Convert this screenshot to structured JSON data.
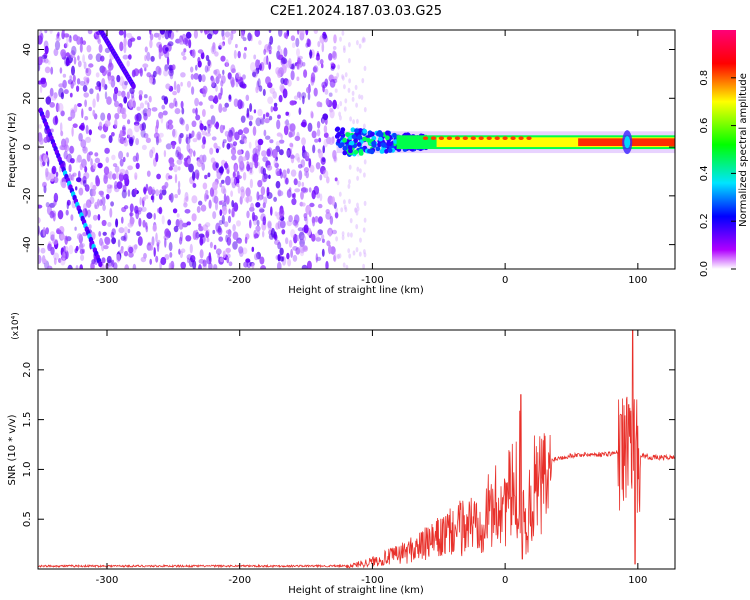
{
  "page_title": "C2E1.2024.187.03.03.G25",
  "chart_data": [
    {
      "type": "heatmap",
      "xlabel": "Height of straight line (km)",
      "ylabel": "Frequency (Hz)",
      "xlim": [
        -352,
        128
      ],
      "ylim": [
        -50,
        48
      ],
      "x_ticks": [
        -300,
        -200,
        -100,
        0,
        100
      ],
      "y_ticks": [
        -40,
        -20,
        0,
        20,
        40
      ],
      "colorbar": {
        "label": "Normalized spectral amplitude",
        "range": [
          0,
          1
        ],
        "ticks": [
          "0.0",
          "0.2",
          "0.4",
          "0.6",
          "0.8"
        ],
        "colors": [
          "#ffffff",
          "#9b00ff",
          "#0000ff",
          "#00e5ff",
          "#00ff00",
          "#ffff00",
          "#ff0000",
          "#ff0077"
        ]
      },
      "features": {
        "noise_region_x": [
          -352,
          -127
        ],
        "carrier_band_freq_hz": [
          0,
          4
        ],
        "carrier_x": [
          -127,
          128
        ],
        "diagonal_streaks": [
          {
            "x": [
              -350,
              -305
            ],
            "freq": [
              15,
              -48
            ]
          },
          {
            "x": [
              -305,
              -280
            ],
            "freq": [
              48,
              25
            ]
          }
        ]
      },
      "grid": false
    },
    {
      "type": "line",
      "xlabel": "Height of straight line (km)",
      "ylabel": "SNR (10 * v/v)",
      "y_multiplier": "(x10⁴)",
      "xlim": [
        -352,
        128
      ],
      "ylim": [
        0,
        2.4
      ],
      "x_ticks": [
        -300,
        -200,
        -100,
        0,
        100
      ],
      "y_ticks": [
        "0.5",
        "1.0",
        "1.5",
        "2.0"
      ],
      "series_color": "#e8302a",
      "profile": {
        "x": [
          -352,
          -120,
          -110,
          -100,
          -80,
          -60,
          -40,
          -20,
          -5,
          10,
          12,
          15,
          20,
          35,
          50,
          60,
          70,
          80,
          85,
          92,
          97,
          100,
          110,
          128
        ],
        "y": [
          0.03,
          0.03,
          0.06,
          0.09,
          0.18,
          0.3,
          0.45,
          0.6,
          0.78,
          0.95,
          1.55,
          0.4,
          0.95,
          1.1,
          1.14,
          1.15,
          1.15,
          1.16,
          1.17,
          1.2,
          1.2,
          1.15,
          1.12,
          1.12
        ]
      },
      "peaks": [
        {
          "x": 12,
          "y": 1.75
        },
        {
          "x": 13,
          "y": 0.1
        },
        {
          "x": 96,
          "y": 2.4
        },
        {
          "x": 98,
          "y": 0.05
        },
        {
          "x": 93,
          "y": 1.65
        }
      ],
      "grid": false
    }
  ]
}
